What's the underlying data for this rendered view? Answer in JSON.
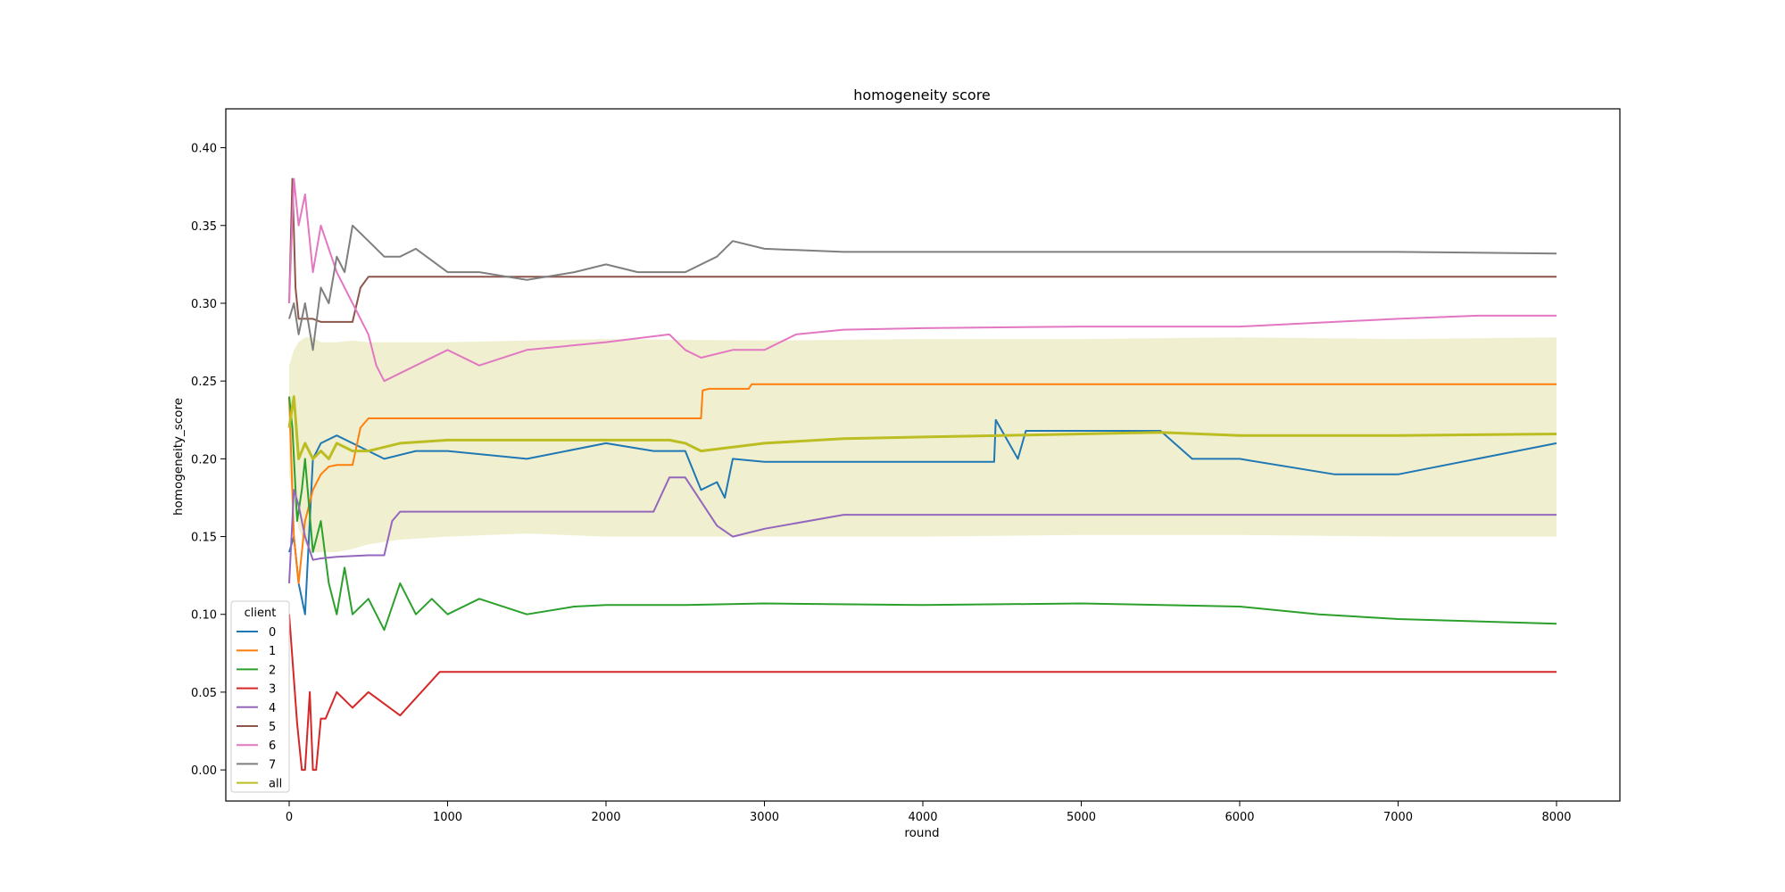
{
  "chart_data": {
    "type": "line",
    "title": "homogeneity score",
    "xlabel": "round",
    "ylabel": "homogeneity_score",
    "xlim": [
      -400,
      8400
    ],
    "ylim": [
      -0.02,
      0.425
    ],
    "xticks": [
      0,
      1000,
      2000,
      3000,
      4000,
      5000,
      6000,
      7000,
      8000
    ],
    "xtick_labels": [
      "0",
      "1000",
      "2000",
      "3000",
      "4000",
      "5000",
      "6000",
      "7000",
      "8000"
    ],
    "yticks": [
      0.0,
      0.05,
      0.1,
      0.15,
      0.2,
      0.25,
      0.3,
      0.35,
      0.4
    ],
    "ytick_labels": [
      "0.00",
      "0.05",
      "0.10",
      "0.15",
      "0.20",
      "0.25",
      "0.30",
      "0.35",
      "0.40"
    ],
    "grid": false,
    "legend": {
      "title": "client",
      "placement": "lower-left",
      "entries": [
        "0",
        "1",
        "2",
        "3",
        "4",
        "5",
        "6",
        "7",
        "all"
      ]
    },
    "band": {
      "color": "#eeeecc",
      "x": [
        0,
        30,
        60,
        100,
        150,
        200,
        300,
        400,
        500,
        700,
        1000,
        1500,
        2000,
        3000,
        4000,
        5000,
        6000,
        7000,
        8000
      ],
      "upper": [
        0.26,
        0.27,
        0.275,
        0.278,
        0.278,
        0.275,
        0.275,
        0.276,
        0.275,
        0.275,
        0.275,
        0.276,
        0.277,
        0.276,
        0.277,
        0.277,
        0.278,
        0.277,
        0.278
      ],
      "lower": [
        0.19,
        0.17,
        0.155,
        0.145,
        0.14,
        0.14,
        0.14,
        0.142,
        0.145,
        0.148,
        0.15,
        0.152,
        0.15,
        0.15,
        0.15,
        0.151,
        0.151,
        0.15,
        0.15
      ]
    },
    "series": [
      {
        "name": "0",
        "color": "#1f77b4",
        "x": [
          0,
          30,
          60,
          100,
          150,
          200,
          300,
          400,
          500,
          600,
          800,
          1000,
          1500,
          2000,
          2300,
          2500,
          2600,
          2700,
          2750,
          2800,
          3000,
          3200,
          4000,
          4450,
          4460,
          4600,
          4650,
          5000,
          5500,
          5700,
          6000,
          6600,
          7000,
          8000
        ],
        "y": [
          0.14,
          0.15,
          0.12,
          0.1,
          0.2,
          0.21,
          0.215,
          0.21,
          0.205,
          0.2,
          0.205,
          0.205,
          0.2,
          0.21,
          0.205,
          0.205,
          0.18,
          0.185,
          0.175,
          0.2,
          0.198,
          0.198,
          0.198,
          0.198,
          0.225,
          0.2,
          0.218,
          0.218,
          0.218,
          0.2,
          0.2,
          0.19,
          0.19,
          0.21
        ]
      },
      {
        "name": "1",
        "color": "#ff7f0e",
        "x": [
          0,
          30,
          60,
          100,
          150,
          200,
          250,
          300,
          400,
          450,
          500,
          600,
          1000,
          2000,
          2600,
          2610,
          2650,
          2900,
          2920,
          4000,
          6000,
          8000
        ],
        "y": [
          0.24,
          0.15,
          0.12,
          0.16,
          0.18,
          0.19,
          0.195,
          0.196,
          0.196,
          0.22,
          0.226,
          0.226,
          0.226,
          0.226,
          0.226,
          0.244,
          0.245,
          0.245,
          0.248,
          0.248,
          0.248,
          0.248
        ]
      },
      {
        "name": "2",
        "color": "#2ca02c",
        "x": [
          0,
          20,
          50,
          80,
          100,
          150,
          200,
          250,
          300,
          350,
          400,
          500,
          600,
          700,
          800,
          900,
          1000,
          1200,
          1500,
          1800,
          2000,
          2500,
          3000,
          4000,
          5000,
          6000,
          6500,
          7000,
          8000
        ],
        "y": [
          0.24,
          0.22,
          0.16,
          0.18,
          0.2,
          0.14,
          0.16,
          0.12,
          0.1,
          0.13,
          0.1,
          0.11,
          0.09,
          0.12,
          0.1,
          0.11,
          0.1,
          0.11,
          0.1,
          0.105,
          0.106,
          0.106,
          0.107,
          0.106,
          0.107,
          0.105,
          0.1,
          0.097,
          0.094
        ]
      },
      {
        "name": "3",
        "color": "#d62728",
        "x": [
          0,
          50,
          80,
          100,
          130,
          150,
          170,
          200,
          230,
          300,
          400,
          500,
          700,
          950,
          1000,
          2000,
          4000,
          6000,
          8000
        ],
        "y": [
          0.1,
          0.03,
          0.0,
          0.0,
          0.05,
          0.0,
          0.0,
          0.033,
          0.033,
          0.05,
          0.04,
          0.05,
          0.035,
          0.063,
          0.063,
          0.063,
          0.063,
          0.063,
          0.063
        ]
      },
      {
        "name": "4",
        "color": "#9467bd",
        "x": [
          0,
          30,
          60,
          100,
          150,
          200,
          300,
          500,
          600,
          650,
          700,
          1000,
          2000,
          2300,
          2400,
          2500,
          2700,
          2800,
          3000,
          3500,
          4000,
          6000,
          8000
        ],
        "y": [
          0.12,
          0.18,
          0.17,
          0.15,
          0.135,
          0.136,
          0.137,
          0.138,
          0.138,
          0.16,
          0.166,
          0.166,
          0.166,
          0.166,
          0.188,
          0.188,
          0.157,
          0.15,
          0.155,
          0.164,
          0.164,
          0.164,
          0.164
        ]
      },
      {
        "name": "5",
        "color": "#8c564b",
        "x": [
          0,
          20,
          40,
          60,
          100,
          150,
          200,
          300,
          400,
          450,
          500,
          700,
          1000,
          2000,
          4000,
          6000,
          8000
        ],
        "y": [
          0.3,
          0.38,
          0.31,
          0.29,
          0.29,
          0.29,
          0.288,
          0.288,
          0.288,
          0.31,
          0.317,
          0.317,
          0.317,
          0.317,
          0.317,
          0.317,
          0.317
        ]
      },
      {
        "name": "6",
        "color": "#e377c2",
        "x": [
          0,
          30,
          60,
          100,
          150,
          200,
          300,
          400,
          500,
          550,
          600,
          800,
          1000,
          1200,
          1500,
          2000,
          2400,
          2500,
          2600,
          2800,
          3000,
          3200,
          3500,
          4000,
          5000,
          6000,
          7000,
          7500,
          8000
        ],
        "y": [
          0.3,
          0.38,
          0.35,
          0.37,
          0.32,
          0.35,
          0.32,
          0.3,
          0.28,
          0.26,
          0.25,
          0.26,
          0.27,
          0.26,
          0.27,
          0.275,
          0.28,
          0.27,
          0.265,
          0.27,
          0.27,
          0.28,
          0.283,
          0.284,
          0.285,
          0.285,
          0.29,
          0.292,
          0.292
        ]
      },
      {
        "name": "7",
        "color": "#7f7f7f",
        "x": [
          0,
          30,
          60,
          100,
          150,
          200,
          250,
          300,
          350,
          400,
          500,
          600,
          700,
          800,
          1000,
          1200,
          1500,
          1800,
          2000,
          2200,
          2500,
          2700,
          2800,
          3000,
          3500,
          4000,
          5000,
          6000,
          7000,
          8000
        ],
        "y": [
          0.29,
          0.3,
          0.28,
          0.3,
          0.27,
          0.31,
          0.3,
          0.33,
          0.32,
          0.35,
          0.34,
          0.33,
          0.33,
          0.335,
          0.32,
          0.32,
          0.315,
          0.32,
          0.325,
          0.32,
          0.32,
          0.33,
          0.34,
          0.335,
          0.333,
          0.333,
          0.333,
          0.333,
          0.333,
          0.332
        ]
      },
      {
        "name": "all",
        "color": "#bcbd22",
        "x": [
          0,
          30,
          60,
          100,
          150,
          200,
          250,
          300,
          400,
          500,
          700,
          1000,
          1500,
          2000,
          2400,
          2500,
          2600,
          3000,
          3500,
          4000,
          4500,
          5000,
          5500,
          6000,
          7000,
          8000
        ],
        "y": [
          0.22,
          0.24,
          0.2,
          0.21,
          0.2,
          0.205,
          0.2,
          0.21,
          0.205,
          0.205,
          0.21,
          0.212,
          0.212,
          0.212,
          0.212,
          0.21,
          0.205,
          0.21,
          0.213,
          0.214,
          0.215,
          0.216,
          0.217,
          0.215,
          0.215,
          0.216
        ]
      }
    ]
  }
}
